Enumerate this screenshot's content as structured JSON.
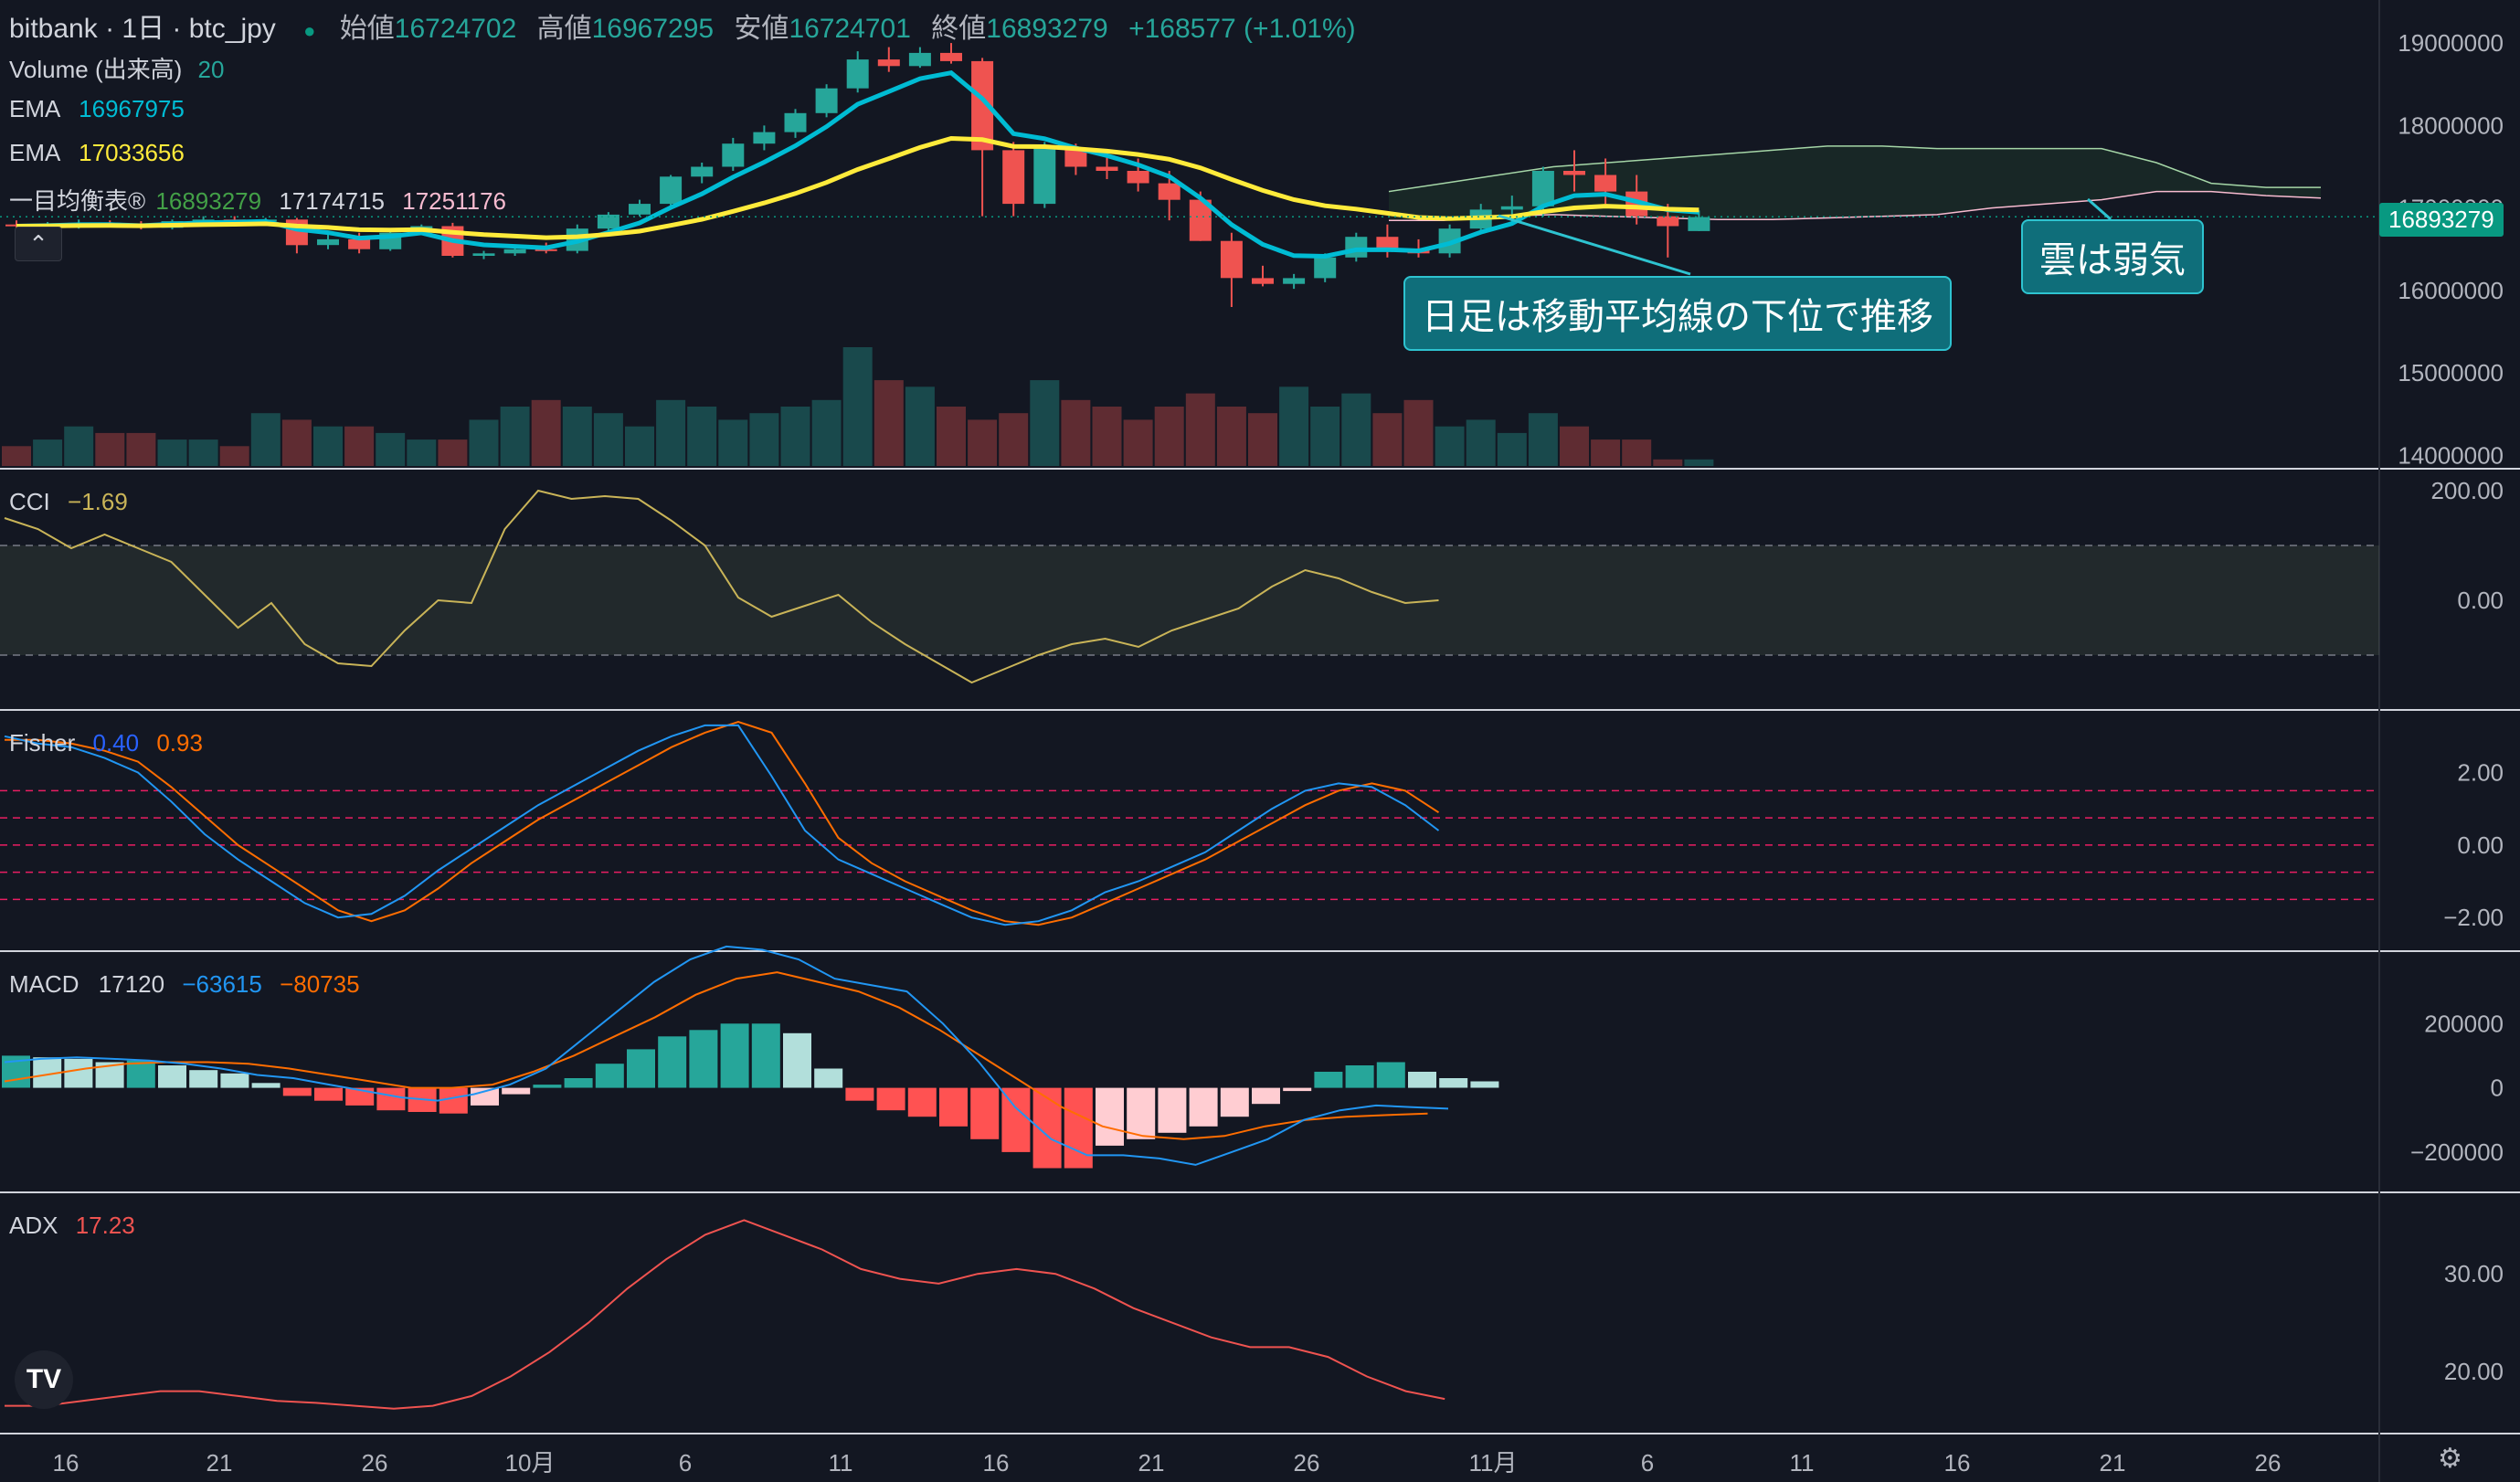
{
  "header": {
    "symbol": "bitbank · 1日 · btc_jpy",
    "open_label": "始値",
    "open": "16724702",
    "high_label": "高値",
    "high": "16967295",
    "low_label": "安値",
    "low": "16724701",
    "close_label": "終値",
    "close": "16893279",
    "change": "+168577 (+1.01%)"
  },
  "legends": {
    "volume": {
      "name": "Volume (出来高)",
      "value": "20"
    },
    "ema1": {
      "name": "EMA",
      "value": "16967975"
    },
    "ema2": {
      "name": "EMA",
      "value": "17033656"
    },
    "ichimoku": {
      "name": "一目均衡表®",
      "v1": "16893279",
      "v2": "17174715",
      "v3": "17251176"
    },
    "cci": {
      "name": "CCI",
      "value": "−1.69"
    },
    "fisher": {
      "name": "Fisher",
      "v1": "0.40",
      "v2": "0.93"
    },
    "macd": {
      "name": "MACD",
      "v1": "17120",
      "v2": "−63615",
      "v3": "−80735"
    },
    "adx": {
      "name": "ADX",
      "value": "17.23"
    }
  },
  "annotations": {
    "callout1": "日足は移動平均線の下位で推移",
    "callout2": "雲は弱気"
  },
  "price_tag": "16893279",
  "colors": {
    "background": "#131722",
    "up": "#26a69a",
    "down": "#ef5350",
    "ema1": "#00bcd4",
    "ema2": "#ffeb3b",
    "cci": "#c9b458",
    "fisher1": "#2962ff",
    "fisher2": "#ff6d00",
    "adx": "#ef5350"
  },
  "chart_data": [
    {
      "type": "candlestick",
      "title": "bitbank · 1日 · btc_jpy",
      "x_ticks": [
        "16",
        "21",
        "26",
        "10月",
        "6",
        "11",
        "16",
        "21",
        "26",
        "11月",
        "6",
        "11",
        "16",
        "21",
        "26"
      ],
      "y_ticks": [
        "19000000",
        "18000000",
        "17000000",
        "16000000",
        "15000000",
        "14000000"
      ],
      "ylim": [
        13850000,
        19300000
      ],
      "candles": [
        [
          16.8,
          16.85,
          16.7,
          16.78
        ],
        [
          16.78,
          16.83,
          16.7,
          16.8
        ],
        [
          16.8,
          16.86,
          16.75,
          16.82
        ],
        [
          16.82,
          16.85,
          16.78,
          16.8
        ],
        [
          16.8,
          16.84,
          16.74,
          16.76
        ],
        [
          16.76,
          16.86,
          16.74,
          16.84
        ],
        [
          16.84,
          16.9,
          16.8,
          16.86
        ],
        [
          16.86,
          16.9,
          16.8,
          16.84
        ],
        [
          16.84,
          16.88,
          16.78,
          16.86
        ],
        [
          16.86,
          16.88,
          16.45,
          16.55
        ],
        [
          16.55,
          16.7,
          16.5,
          16.62
        ],
        [
          16.62,
          16.7,
          16.45,
          16.5
        ],
        [
          16.5,
          16.72,
          16.48,
          16.7
        ],
        [
          16.7,
          16.8,
          16.68,
          16.78
        ],
        [
          16.78,
          16.82,
          16.4,
          16.42
        ],
        [
          16.42,
          16.48,
          16.38,
          16.45
        ],
        [
          16.45,
          16.52,
          16.42,
          16.5
        ],
        [
          16.5,
          16.58,
          16.45,
          16.48
        ],
        [
          16.48,
          16.8,
          16.45,
          16.75
        ],
        [
          16.75,
          16.95,
          16.7,
          16.92
        ],
        [
          16.92,
          17.1,
          16.9,
          17.05
        ],
        [
          17.05,
          17.4,
          17.02,
          17.38
        ],
        [
          17.38,
          17.55,
          17.3,
          17.5
        ],
        [
          17.5,
          17.85,
          17.45,
          17.78
        ],
        [
          17.78,
          18.0,
          17.7,
          17.92
        ],
        [
          17.92,
          18.2,
          17.85,
          18.15
        ],
        [
          18.15,
          18.5,
          18.1,
          18.45
        ],
        [
          18.45,
          18.9,
          18.4,
          18.8
        ],
        [
          18.8,
          18.95,
          18.65,
          18.72
        ],
        [
          18.72,
          18.95,
          18.7,
          18.88
        ],
        [
          18.88,
          19.0,
          18.75,
          18.78
        ],
        [
          18.78,
          18.82,
          16.9,
          17.7
        ],
        [
          17.7,
          17.8,
          16.9,
          17.05
        ],
        [
          17.05,
          17.8,
          17.0,
          17.72
        ],
        [
          17.72,
          17.78,
          17.4,
          17.5
        ],
        [
          17.5,
          17.7,
          17.35,
          17.45
        ],
        [
          17.45,
          17.6,
          17.2,
          17.3
        ],
        [
          17.3,
          17.45,
          16.85,
          17.1
        ],
        [
          17.1,
          17.2,
          16.6,
          16.6
        ],
        [
          16.6,
          16.7,
          15.8,
          16.15
        ],
        [
          16.15,
          16.3,
          16.05,
          16.08
        ],
        [
          16.08,
          16.2,
          16.02,
          16.15
        ],
        [
          16.15,
          16.45,
          16.1,
          16.4
        ],
        [
          16.4,
          16.7,
          16.35,
          16.65
        ],
        [
          16.65,
          16.8,
          16.4,
          16.5
        ],
        [
          16.5,
          16.62,
          16.4,
          16.45
        ],
        [
          16.45,
          16.8,
          16.4,
          16.75
        ],
        [
          16.75,
          17.05,
          16.7,
          16.98
        ],
        [
          16.98,
          17.15,
          16.8,
          17.02
        ],
        [
          17.02,
          17.5,
          16.9,
          17.45
        ],
        [
          17.45,
          17.7,
          17.2,
          17.4
        ],
        [
          17.4,
          17.6,
          17.05,
          17.2
        ],
        [
          17.2,
          17.4,
          16.8,
          16.9
        ],
        [
          16.9,
          17.05,
          16.4,
          16.78
        ],
        [
          16.72,
          16.97,
          16.72,
          16.89
        ]
      ],
      "volume": [
        3,
        4,
        6,
        5,
        5,
        4,
        4,
        3,
        8,
        7,
        6,
        6,
        5,
        4,
        4,
        7,
        9,
        10,
        9,
        8,
        6,
        10,
        9,
        7,
        8,
        9,
        10,
        18,
        13,
        12,
        9,
        7,
        8,
        13,
        10,
        9,
        7,
        9,
        11,
        9,
        8,
        12,
        9,
        11,
        8,
        10,
        6,
        7,
        5,
        8,
        6,
        4,
        4,
        1,
        1
      ]
    },
    {
      "type": "line",
      "title": "CCI",
      "y_ticks": [
        "200.00",
        "0.00"
      ],
      "ylim": [
        -185,
        225
      ],
      "bands": [
        100,
        -100
      ],
      "values": [
        150,
        130,
        95,
        120,
        95,
        70,
        10,
        -50,
        -5,
        -80,
        -115,
        -120,
        -55,
        0,
        -5,
        130,
        200,
        185,
        190,
        185,
        145,
        100,
        5,
        -30,
        -10,
        10,
        -40,
        -80,
        -115,
        -150,
        -125,
        -100,
        -80,
        -70,
        -85,
        -55,
        -35,
        -15,
        25,
        55,
        40,
        15,
        -5,
        0
      ]
    },
    {
      "type": "line",
      "title": "Fisher",
      "y_ticks": [
        "2.00",
        "0.00",
        "−2.00"
      ],
      "ylim": [
        -2.7,
        3.5
      ],
      "bands": [
        1.5,
        0.75,
        0,
        -0.75,
        -1.5
      ],
      "series": [
        {
          "values": [
            3.0,
            2.8,
            2.7,
            2.4,
            2.0,
            1.2,
            0.3,
            -0.4,
            -1.0,
            -1.6,
            -2.0,
            -1.9,
            -1.4,
            -0.7,
            -0.1,
            0.5,
            1.1,
            1.6,
            2.1,
            2.6,
            3.0,
            3.3,
            3.3,
            1.9,
            0.4,
            -0.4,
            -0.8,
            -1.2,
            -1.6,
            -2.0,
            -2.2,
            -2.1,
            -1.8,
            -1.3,
            -1.0,
            -0.6,
            -0.2,
            0.4,
            1.0,
            1.5,
            1.7,
            1.6,
            1.1,
            0.4
          ]
        },
        {
          "values": [
            2.9,
            2.9,
            2.8,
            2.6,
            2.3,
            1.6,
            0.8,
            0.0,
            -0.6,
            -1.2,
            -1.8,
            -2.1,
            -1.8,
            -1.2,
            -0.5,
            0.1,
            0.7,
            1.2,
            1.7,
            2.2,
            2.7,
            3.1,
            3.4,
            3.1,
            1.7,
            0.2,
            -0.5,
            -1.0,
            -1.4,
            -1.8,
            -2.1,
            -2.2,
            -2.0,
            -1.6,
            -1.2,
            -0.8,
            -0.4,
            0.1,
            0.6,
            1.1,
            1.5,
            1.7,
            1.5,
            0.9
          ]
        }
      ]
    },
    {
      "type": "bar",
      "title": "MACD",
      "y_ticks": [
        "200000",
        "0",
        "−200000"
      ],
      "ylim": [
        -300000,
        400000
      ],
      "histogram": [
        100000,
        95000,
        90000,
        80000,
        85000,
        70000,
        55000,
        45000,
        15000,
        -25000,
        -40000,
        -55000,
        -70000,
        -75000,
        -80000,
        -55000,
        -20000,
        10000,
        30000,
        75000,
        120000,
        160000,
        180000,
        200000,
        200000,
        170000,
        60000,
        -40000,
        -70000,
        -90000,
        -120000,
        -160000,
        -200000,
        -250000,
        -250000,
        -180000,
        -160000,
        -140000,
        -120000,
        -90000,
        -50000,
        -10000,
        50000,
        70000,
        80000,
        50000,
        30000,
        20000
      ],
      "series": [
        {
          "values": [
            80000,
            90000,
            95000,
            90000,
            85000,
            75000,
            60000,
            40000,
            30000,
            10000,
            -10000,
            -30000,
            -40000,
            -20000,
            10000,
            60000,
            150000,
            240000,
            330000,
            400000,
            440000,
            430000,
            400000,
            340000,
            320000,
            300000,
            200000,
            80000,
            -60000,
            -160000,
            -210000,
            -210000,
            -220000,
            -240000,
            -200000,
            -160000,
            -100000,
            -70000,
            -55000,
            -60000,
            -65000
          ]
        },
        {
          "values": [
            20000,
            40000,
            60000,
            75000,
            80000,
            80000,
            75000,
            60000,
            40000,
            20000,
            0,
            0,
            10000,
            50000,
            100000,
            160000,
            220000,
            290000,
            340000,
            360000,
            330000,
            300000,
            250000,
            180000,
            100000,
            20000,
            -60000,
            -120000,
            -150000,
            -160000,
            -150000,
            -120000,
            -100000,
            -90000,
            -85000,
            -80000
          ]
        }
      ]
    },
    {
      "type": "line",
      "title": "ADX",
      "y_ticks": [
        "30.00",
        "20.00"
      ],
      "ylim": [
        14.5,
        37.5
      ],
      "values": [
        16.5,
        16.5,
        17.0,
        17.5,
        18.0,
        18.0,
        17.5,
        17.0,
        16.8,
        16.5,
        16.2,
        16.5,
        17.5,
        19.5,
        22.0,
        25.0,
        28.5,
        31.5,
        34.0,
        35.5,
        34.0,
        32.5,
        30.5,
        29.5,
        29.0,
        30.0,
        30.5,
        30.0,
        28.5,
        26.5,
        25.0,
        23.5,
        22.5,
        22.5,
        21.5,
        19.5,
        18.0,
        17.2
      ]
    }
  ]
}
